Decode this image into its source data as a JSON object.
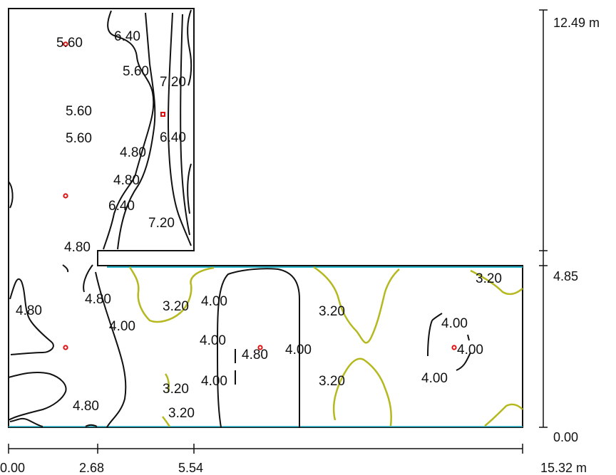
{
  "colors": {
    "contour_black": "#111111",
    "contour_yellow": "#b5b81e",
    "sensor_red": "#e01010",
    "edge_cyan": "#20b0c8"
  },
  "contour_labels": [
    {
      "text": "5.60"
    },
    {
      "text": "6.40"
    },
    {
      "text": "5.60"
    },
    {
      "text": "7.20"
    },
    {
      "text": "5.60"
    },
    {
      "text": "6.40"
    },
    {
      "text": "5.60"
    },
    {
      "text": "4.80"
    },
    {
      "text": "4.80"
    },
    {
      "text": "6.40"
    },
    {
      "text": "7.20"
    },
    {
      "text": "4.80"
    },
    {
      "text": "3.20"
    },
    {
      "text": "4.80"
    },
    {
      "text": "4.80"
    },
    {
      "text": "3.20"
    },
    {
      "text": "4.00"
    },
    {
      "text": "3.20"
    },
    {
      "text": "4.00"
    },
    {
      "text": "4.00"
    },
    {
      "text": "4.00"
    },
    {
      "text": "4.80"
    },
    {
      "text": "4.00"
    },
    {
      "text": "4.00"
    },
    {
      "text": "3.20"
    },
    {
      "text": "4.00"
    },
    {
      "text": "3.20"
    },
    {
      "text": "4.00"
    },
    {
      "text": "4.80"
    },
    {
      "text": "3.20"
    }
  ],
  "x_dimension": {
    "ticks": [
      "0.00",
      "2.68",
      "5.54",
      "15.32 m"
    ]
  },
  "y_dimension": {
    "ticks": [
      "12.49 m",
      "4.85",
      "0.00"
    ]
  }
}
